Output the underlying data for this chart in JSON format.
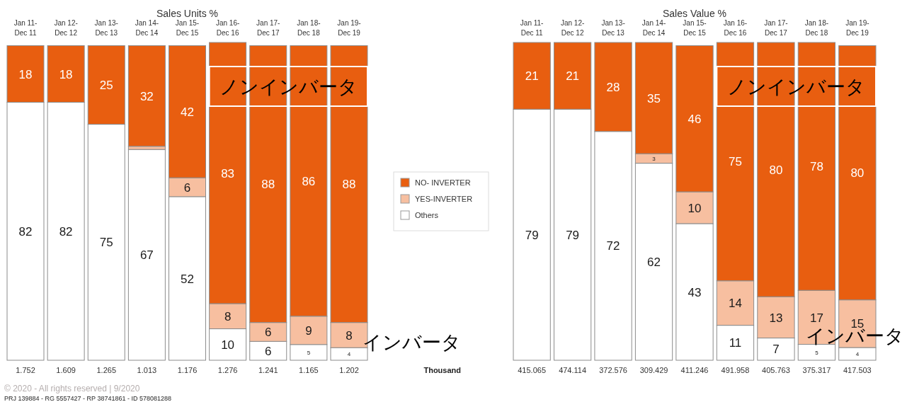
{
  "chart_data": [
    {
      "type": "bar",
      "stacked": true,
      "title": "Sales Units %",
      "categories": [
        "Jan 11-Dec 11",
        "Jan 12-Dec 12",
        "Jan 13-Dec 13",
        "Jan 14-Dec 14",
        "Jan 15-Dec 15",
        "Jan 16-Dec 16",
        "Jan 17-Dec 17",
        "Jan 18-Dec 18",
        "Jan 19-Dec 19"
      ],
      "ylim": [
        0,
        101
      ],
      "tick_labels": "x",
      "legend": "right",
      "series": [
        {
          "name": "Others",
          "color": "#ffffff",
          "values": [
            82,
            82,
            75,
            67,
            52,
            10,
            6,
            5,
            4
          ],
          "value_labels": [
            "82",
            "82",
            "75",
            "67",
            "52",
            "10",
            "6",
            "5",
            "4"
          ]
        },
        {
          "name": "YES-INVERTER",
          "color": "#f7bfa0",
          "values": [
            null,
            null,
            null,
            1,
            6,
            8,
            6,
            9,
            8
          ],
          "value_labels": [
            null,
            null,
            null,
            null,
            "6",
            "8",
            "6",
            "9",
            "8"
          ]
        },
        {
          "name": "NO- INVERTER",
          "color": "#e85e10",
          "values": [
            18,
            18,
            25,
            32,
            42,
            83,
            88,
            86,
            88
          ],
          "value_labels": [
            "18",
            "18",
            "25",
            "32",
            "42",
            "83",
            "88",
            "86",
            "88"
          ]
        }
      ],
      "annotations": [
        "ノンインバータ",
        "インバータ",
        "1.752",
        "1.609",
        "1.265",
        "1.013",
        "1.176",
        "1.276",
        "1.241",
        "1.165",
        "1.202",
        "Thousand",
        "© 2020 - All rights reserved | 9/2020",
        "PRJ 139884 - RG 5557427 - RP 38741861 - ID 578081288"
      ]
    },
    {
      "type": "bar",
      "stacked": true,
      "title": "Sales Value %",
      "categories": [
        "Jan 11-Dec 11",
        "Jan 12-Dec 12",
        "Jan 13-Dec 13",
        "Jan 14-Dec 14",
        "Jan 15-Dec 15",
        "Jan 16-Dec 16",
        "Jan 17-Dec 17",
        "Jan 18-Dec 18",
        "Jan 19-Dec 19"
      ],
      "ylim": [
        0,
        100
      ],
      "tick_labels": "x",
      "series": [
        {
          "color": "#ffffff",
          "values": [
            79,
            79,
            72,
            62,
            43,
            11,
            7,
            5,
            4
          ],
          "value_labels": [
            "79",
            "79",
            "72",
            "62",
            "43",
            "11",
            "7",
            "5",
            "4"
          ]
        },
        {
          "color": "#f7bfa0",
          "values": [
            null,
            null,
            null,
            3,
            10,
            14,
            13,
            17,
            15
          ],
          "value_labels": [
            null,
            null,
            null,
            "3",
            "10",
            "14",
            "13",
            "17",
            "15"
          ]
        },
        {
          "color": "#e85e10",
          "values": [
            21,
            21,
            28,
            35,
            46,
            75,
            80,
            78,
            80
          ],
          "value_labels": [
            "21",
            "21",
            "28",
            "35",
            "46",
            "75",
            "80",
            "78",
            "80"
          ]
        }
      ],
      "annotations": [
        "ノンインバータ",
        "インバータ",
        "415.065",
        "474.114",
        "372.576",
        "309.429",
        "411.246",
        "491.958",
        "405.763",
        "375.317",
        "417.503"
      ]
    }
  ]
}
